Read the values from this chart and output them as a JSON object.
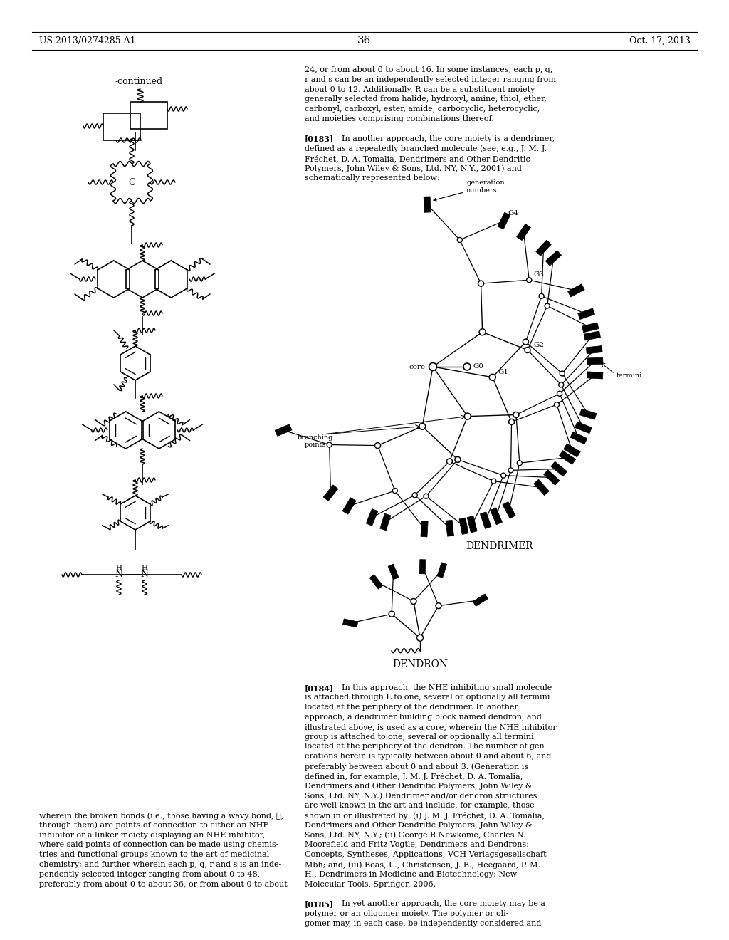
{
  "background_color": "#ffffff",
  "text_color": "#000000",
  "page_header_left": "US 2013/0274285 A1",
  "page_header_right": "Oct. 17, 2013",
  "page_number": "36",
  "continued_label": "-continued",
  "right_text_lines": [
    [
      "",
      "24, or from about 0 to about 16. In some instances, each p, q,"
    ],
    [
      "",
      "r and s can be an independently selected integer ranging from"
    ],
    [
      "",
      "about 0 to 12. Additionally, R can be a substituent moiety"
    ],
    [
      "",
      "generally selected from halide, hydroxyl, amine, thiol, ether,"
    ],
    [
      "",
      "carbonyl, carboxyl, ester, amide, carbocyclic, heterocyclic,"
    ],
    [
      "",
      "and moieties comprising combinations thereof."
    ],
    [
      "",
      ""
    ],
    [
      "[0183]",
      "    In another approach, the core moiety is a dendrimer,"
    ],
    [
      "",
      "defined as a repeatedly branched molecule (see, e.g., J. M. J."
    ],
    [
      "",
      "Fréchet, D. A. Tomalia, Dendrimers and Other Dendritic"
    ],
    [
      "",
      "Polymers, John Wiley & Sons, Ltd. NY, N.Y., 2001) and"
    ],
    [
      "",
      "schematically represented below:"
    ]
  ],
  "right_text_after": [
    [
      "[0184]",
      "    In this approach, the NHE inhibiting small molecule"
    ],
    [
      "",
      "is attached through L to one, several or optionally all termini"
    ],
    [
      "",
      "located at the periphery of the dendrimer. In another"
    ],
    [
      "",
      "approach, a dendrimer building block named dendron, and"
    ],
    [
      "",
      "illustrated above, is used as a core, wherein the NHE inhibitor"
    ],
    [
      "",
      "group is attached to one, several or optionally all termini"
    ],
    [
      "",
      "located at the periphery of the dendron. The number of gen-"
    ],
    [
      "",
      "erations herein is typically between about 0 and about 6, and"
    ],
    [
      "",
      "preferably between about 0 and about 3. (Generation is"
    ],
    [
      "",
      "defined in, for example, J. M. J. Fréchet, D. A. Tomalia,"
    ],
    [
      "",
      "Dendrimers and Other Dendritic Polymers, John Wiley &"
    ],
    [
      "",
      "Sons, Ltd. NY, N.Y.) Dendrimer and/or dendron structures"
    ],
    [
      "",
      "are well known in the art and include, for example, those"
    ],
    [
      "",
      "shown in or illustrated by: (i) J. M. J. Fréchet, D. A. Tomalia,"
    ],
    [
      "",
      "Dendrimers and Other Dendritic Polymers, John Wiley &"
    ],
    [
      "",
      "Sons, Ltd. NY, N.Y.; (ii) George R Newkome, Charles N."
    ],
    [
      "",
      "Moorefield and Fritz Vogtle, Dendrimers and Dendrons:"
    ],
    [
      "",
      "Concepts, Syntheses, Applications, VCH Verlagsgesellschaft"
    ],
    [
      "",
      "Mbh; and, (iii) Boas, U., Christensen, J. B., Heegaard, P. M."
    ],
    [
      "",
      "H., Dendrimers in Medicine and Biotechnology: New"
    ],
    [
      "",
      "Molecular Tools, Springer, 2006."
    ],
    [
      "",
      ""
    ],
    [
      "[0185]",
      "    In yet another approach, the core moiety may be a"
    ],
    [
      "",
      "polymer or an oligomer moiety. The polymer or oli-"
    ],
    [
      "",
      "gomer may, in each case, be independently considered and"
    ]
  ],
  "bottom_text": [
    "wherein the broken bonds (i.e., those having a wavy bond, ≧,",
    "through them) are points of connection to either an NHE",
    "inhibitor or a linker moiety displaying an NHE inhibitor,",
    "where said points of connection can be made using chemis-",
    "tries and functional groups known to the art of medicinal",
    "chemistry; and further wherein each p, q, r and s is an inde-",
    "pendently selected integer ranging from about 0 to 48,",
    "preferably from about 0 to about 36, or from about 0 to about"
  ]
}
